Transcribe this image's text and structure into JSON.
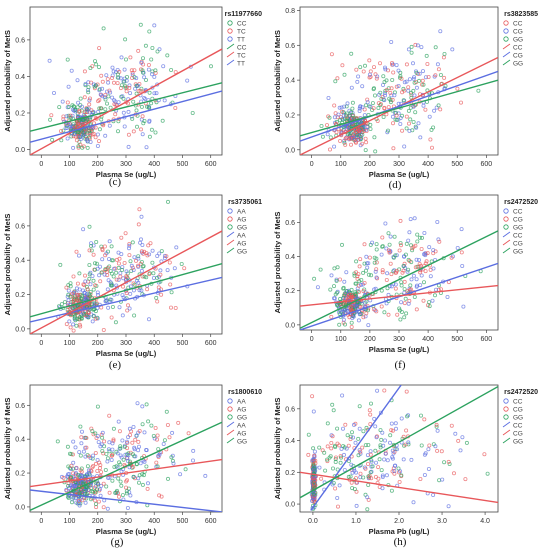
{
  "chart_data": [
    {
      "type": "scatter",
      "panel_label": "(c)",
      "title": "rs11977660",
      "xlabel": "Plasma Se (ug/L)",
      "ylabel": "Adjusted probability of MetS",
      "xlim": [
        -40,
        640
      ],
      "ylim": [
        -0.03,
        0.78
      ],
      "xticks": [
        0,
        100,
        200,
        300,
        400,
        500,
        600
      ],
      "yticks": [
        0.0,
        0.2,
        0.4,
        0.6
      ],
      "xtick_labels": [
        "0",
        "100",
        "200",
        "300",
        "400",
        "500",
        "600"
      ],
      "ytick_labels": [
        "0.0",
        "0.2",
        "0.4",
        "0.6"
      ],
      "legend": [
        {
          "label": "CC",
          "marker": "circle",
          "color": "#2ca25f"
        },
        {
          "label": "TC",
          "marker": "circle",
          "color": "#e8575a"
        },
        {
          "label": "TT",
          "marker": "circle",
          "color": "#5b6ee1"
        },
        {
          "label": "CC",
          "marker": "line",
          "color": "#2ca25f"
        },
        {
          "label": "TC",
          "marker": "line",
          "color": "#e8575a"
        },
        {
          "label": "TT",
          "marker": "line",
          "color": "#5b6ee1"
        }
      ],
      "lines": [
        {
          "name": "CC",
          "color": "#2ca25f",
          "x": [
            -40,
            640
          ],
          "y": [
            0.1,
            0.365
          ]
        },
        {
          "name": "TC",
          "color": "#e8575a",
          "x": [
            -40,
            640
          ],
          "y": [
            -0.03,
            0.55
          ]
        },
        {
          "name": "TT",
          "color": "#5b6ee1",
          "x": [
            -40,
            640
          ],
          "y": [
            0.04,
            0.32
          ]
        }
      ],
      "clusters": [
        {
          "x": 140,
          "y": 0.13,
          "sx": 30,
          "sy": 0.05,
          "n": 220
        },
        {
          "x": 260,
          "y": 0.27,
          "sx": 90,
          "sy": 0.12,
          "n": 190
        },
        {
          "x": 380,
          "y": 0.36,
          "sx": 70,
          "sy": 0.12,
          "n": 60
        }
      ]
    },
    {
      "type": "scatter",
      "panel_label": "(d)",
      "title": "rs3823585",
      "xlabel": "Plasma Se (ug/L)",
      "ylabel": "Adjusted probability of MetS",
      "xlim": [
        -40,
        640
      ],
      "ylim": [
        -0.03,
        0.82
      ],
      "xticks": [
        0,
        100,
        200,
        300,
        400,
        500,
        600
      ],
      "yticks": [
        0.0,
        0.2,
        0.4,
        0.6,
        0.8
      ],
      "xtick_labels": [
        "0",
        "100",
        "200",
        "300",
        "400",
        "500",
        "600"
      ],
      "ytick_labels": [
        "0.0",
        "0.2",
        "0.4",
        "0.6",
        "0.8"
      ],
      "legend": [
        {
          "label": "CC",
          "marker": "circle",
          "color": "#e8575a"
        },
        {
          "label": "CG",
          "marker": "circle",
          "color": "#5b6ee1"
        },
        {
          "label": "GG",
          "marker": "circle",
          "color": "#2ca25f"
        },
        {
          "label": "CC",
          "marker": "line",
          "color": "#e8575a"
        },
        {
          "label": "CG",
          "marker": "line",
          "color": "#5b6ee1"
        },
        {
          "label": "GG",
          "marker": "line",
          "color": "#2ca25f"
        }
      ],
      "lines": [
        {
          "name": "CC",
          "color": "#e8575a",
          "x": [
            -40,
            640
          ],
          "y": [
            -0.03,
            0.53
          ]
        },
        {
          "name": "CG",
          "color": "#5b6ee1",
          "x": [
            -40,
            640
          ],
          "y": [
            0.05,
            0.45
          ]
        },
        {
          "name": "GG",
          "color": "#2ca25f",
          "x": [
            -40,
            640
          ],
          "y": [
            0.08,
            0.4
          ]
        }
      ],
      "clusters": [
        {
          "x": 140,
          "y": 0.13,
          "sx": 30,
          "sy": 0.05,
          "n": 220
        },
        {
          "x": 260,
          "y": 0.28,
          "sx": 90,
          "sy": 0.13,
          "n": 190
        },
        {
          "x": 380,
          "y": 0.38,
          "sx": 70,
          "sy": 0.13,
          "n": 60
        }
      ]
    },
    {
      "type": "scatter",
      "panel_label": "(e)",
      "title": "rs3735061",
      "xlabel": "Plasma Se (ug/L)",
      "ylabel": "Adjusted probability of MetS",
      "xlim": [
        -40,
        640
      ],
      "ylim": [
        -0.03,
        0.78
      ],
      "xticks": [
        0,
        100,
        200,
        300,
        400,
        500,
        600
      ],
      "yticks": [
        0.0,
        0.2,
        0.4,
        0.6
      ],
      "xtick_labels": [
        "0",
        "100",
        "200",
        "300",
        "400",
        "500",
        "600"
      ],
      "ytick_labels": [
        "0.0",
        "0.2",
        "0.4",
        "0.6"
      ],
      "legend": [
        {
          "label": "AA",
          "marker": "circle",
          "color": "#5b6ee1"
        },
        {
          "label": "AG",
          "marker": "circle",
          "color": "#e8575a"
        },
        {
          "label": "GG",
          "marker": "circle",
          "color": "#2ca25f"
        },
        {
          "label": "AA",
          "marker": "line",
          "color": "#5b6ee1"
        },
        {
          "label": "AG",
          "marker": "line",
          "color": "#e8575a"
        },
        {
          "label": "GG",
          "marker": "line",
          "color": "#2ca25f"
        }
      ],
      "lines": [
        {
          "name": "AA",
          "color": "#5b6ee1",
          "x": [
            -40,
            640
          ],
          "y": [
            0.04,
            0.3
          ]
        },
        {
          "name": "AG",
          "color": "#e8575a",
          "x": [
            -40,
            640
          ],
          "y": [
            -0.03,
            0.57
          ]
        },
        {
          "name": "GG",
          "color": "#2ca25f",
          "x": [
            -40,
            640
          ],
          "y": [
            0.07,
            0.38
          ]
        }
      ],
      "clusters": [
        {
          "x": 140,
          "y": 0.13,
          "sx": 30,
          "sy": 0.05,
          "n": 220
        },
        {
          "x": 260,
          "y": 0.28,
          "sx": 90,
          "sy": 0.12,
          "n": 190
        },
        {
          "x": 380,
          "y": 0.37,
          "sx": 70,
          "sy": 0.13,
          "n": 60
        }
      ]
    },
    {
      "type": "scatter",
      "panel_label": "(f)",
      "title": "rs2472520",
      "xlabel": "Plasma Se (ug/L)",
      "ylabel": "Adjusted probability of MetS",
      "xlim": [
        -40,
        640
      ],
      "ylim": [
        -0.03,
        0.76
      ],
      "xticks": [
        0,
        100,
        200,
        300,
        400,
        500,
        600
      ],
      "yticks": [
        0.0,
        0.2,
        0.4,
        0.6
      ],
      "xtick_labels": [
        "0",
        "100",
        "200",
        "300",
        "400",
        "500",
        "600"
      ],
      "ytick_labels": [
        "0.0",
        "0.2",
        "0.4",
        "0.6"
      ],
      "legend": [
        {
          "label": "CC",
          "marker": "circle",
          "color": "#5b6ee1"
        },
        {
          "label": "CG",
          "marker": "circle",
          "color": "#e8575a"
        },
        {
          "label": "GG",
          "marker": "circle",
          "color": "#2ca25f"
        },
        {
          "label": "CC",
          "marker": "line",
          "color": "#5b6ee1"
        },
        {
          "label": "CG",
          "marker": "line",
          "color": "#e8575a"
        },
        {
          "label": "GG",
          "marker": "line",
          "color": "#2ca25f"
        }
      ],
      "lines": [
        {
          "name": "CC",
          "color": "#5b6ee1",
          "x": [
            -40,
            640
          ],
          "y": [
            -0.03,
            0.36
          ]
        },
        {
          "name": "CG",
          "color": "#e8575a",
          "x": [
            -40,
            640
          ],
          "y": [
            0.11,
            0.23
          ]
        },
        {
          "name": "GG",
          "color": "#2ca25f",
          "x": [
            -40,
            640
          ],
          "y": [
            -0.02,
            0.55
          ]
        }
      ],
      "clusters": [
        {
          "x": 140,
          "y": 0.12,
          "sx": 30,
          "sy": 0.05,
          "n": 220
        },
        {
          "x": 260,
          "y": 0.27,
          "sx": 90,
          "sy": 0.13,
          "n": 190
        },
        {
          "x": 380,
          "y": 0.38,
          "sx": 70,
          "sy": 0.13,
          "n": 60
        }
      ]
    },
    {
      "type": "scatter",
      "panel_label": "(g)",
      "title": "rs1800610",
      "xlabel": "Plasma Se (ug/L)",
      "ylabel": "Adjusted probability of MetS",
      "xlim": [
        -40,
        640
      ],
      "ylim": [
        -0.03,
        0.72
      ],
      "xticks": [
        0,
        100,
        200,
        300,
        400,
        500,
        600
      ],
      "yticks": [
        0.0,
        0.2,
        0.4,
        0.6
      ],
      "xtick_labels": [
        "0",
        "100",
        "200",
        "300",
        "400",
        "500",
        "600"
      ],
      "ytick_labels": [
        "0.0",
        "0.2",
        "0.4",
        "0.6"
      ],
      "legend": [
        {
          "label": "AA",
          "marker": "circle",
          "color": "#5b6ee1"
        },
        {
          "label": "AG",
          "marker": "circle",
          "color": "#e8575a"
        },
        {
          "label": "GG",
          "marker": "circle",
          "color": "#2ca25f"
        },
        {
          "label": "AA",
          "marker": "line",
          "color": "#5b6ee1"
        },
        {
          "label": "AG",
          "marker": "line",
          "color": "#e8575a"
        },
        {
          "label": "GG",
          "marker": "line",
          "color": "#2ca25f"
        }
      ],
      "lines": [
        {
          "name": "AA",
          "color": "#5b6ee1",
          "x": [
            -40,
            640
          ],
          "y": [
            0.1,
            -0.03
          ]
        },
        {
          "name": "AG",
          "color": "#e8575a",
          "x": [
            -40,
            640
          ],
          "y": [
            0.12,
            0.28
          ]
        },
        {
          "name": "GG",
          "color": "#2ca25f",
          "x": [
            -40,
            640
          ],
          "y": [
            -0.02,
            0.5
          ]
        }
      ],
      "clusters": [
        {
          "x": 140,
          "y": 0.12,
          "sx": 30,
          "sy": 0.05,
          "n": 220
        },
        {
          "x": 260,
          "y": 0.27,
          "sx": 90,
          "sy": 0.13,
          "n": 190
        },
        {
          "x": 380,
          "y": 0.36,
          "sx": 70,
          "sy": 0.13,
          "n": 60
        }
      ]
    },
    {
      "type": "scatter",
      "panel_label": "(h)",
      "title": "rs2472520",
      "xlabel": "Plasma Pb (ug/L)",
      "ylabel": "Adjusted probability of MetS",
      "xlim": [
        -0.3,
        4.3
      ],
      "ylim": [
        -0.05,
        0.75
      ],
      "xticks": [
        0.0,
        1.0,
        2.0,
        3.0,
        4.0
      ],
      "yticks": [
        0.0,
        0.2,
        0.4,
        0.6
      ],
      "xtick_labels": [
        "0.0",
        "1.0",
        "2.0",
        "3.0",
        "4.0"
      ],
      "ytick_labels": [
        "0.0",
        "0.2",
        "0.4",
        "0.6"
      ],
      "legend": [
        {
          "label": "CC",
          "marker": "circle",
          "color": "#5b6ee1"
        },
        {
          "label": "CG",
          "marker": "circle",
          "color": "#e8575a"
        },
        {
          "label": "GG",
          "marker": "circle",
          "color": "#2ca25f"
        },
        {
          "label": "CC",
          "marker": "line",
          "color": "#5b6ee1"
        },
        {
          "label": "CG",
          "marker": "line",
          "color": "#e8575a"
        },
        {
          "label": "GG",
          "marker": "line",
          "color": "#2ca25f"
        }
      ],
      "lines": [
        {
          "name": "CC",
          "color": "#5b6ee1",
          "x": [
            -0.05,
            2.05
          ],
          "y": [
            -0.04,
            0.75
          ]
        },
        {
          "name": "CG",
          "color": "#e8575a",
          "x": [
            -0.3,
            4.3
          ],
          "y": [
            0.2,
            0.01
          ]
        },
        {
          "name": "GG",
          "color": "#2ca25f",
          "x": [
            -0.3,
            4.3
          ],
          "y": [
            0.04,
            0.74
          ]
        }
      ],
      "clusters": [
        {
          "x": 0.02,
          "y": 0.14,
          "sx": 0.02,
          "sy": 0.07,
          "n": 170
        },
        {
          "x": 1.0,
          "y": 0.3,
          "sx": 0.8,
          "sy": 0.15,
          "n": 230
        },
        {
          "x": 2.6,
          "y": 0.3,
          "sx": 0.6,
          "sy": 0.15,
          "n": 40
        }
      ]
    }
  ]
}
